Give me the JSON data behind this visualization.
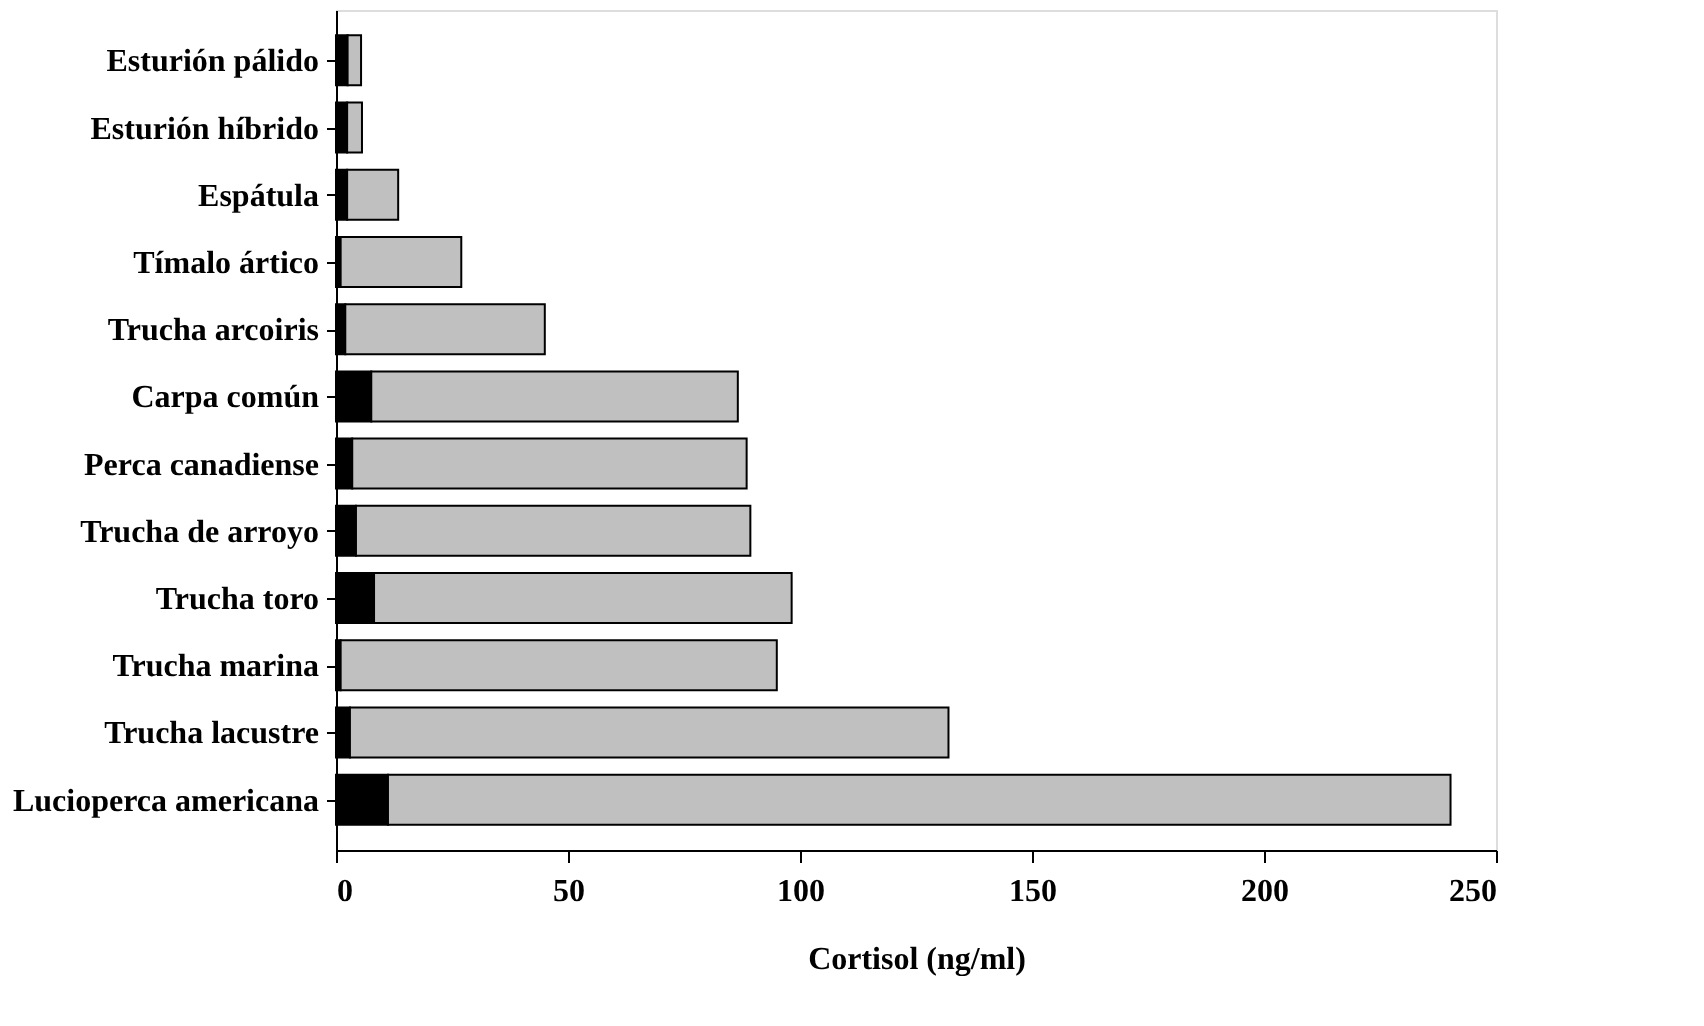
{
  "chart_data": {
    "type": "bar",
    "orientation": "horizontal",
    "stacked": true,
    "xlabel": "Cortisol (ng/ml)",
    "categories": [
      "Esturión pálido",
      "Esturión híbrido",
      "Espátula",
      "Tímalo ártico",
      "Trucha arcoiris",
      "Carpa común",
      "Perca canadiense",
      "Trucha de arroyo",
      "Trucha toro",
      "Trucha marina",
      "Trucha lacustre",
      "Lucioperca americana"
    ],
    "series": [
      {
        "color": "#000000",
        "values": [
          2.5,
          2.4,
          2.4,
          1,
          2,
          7.6,
          3.5,
          4.3,
          8.2,
          1,
          3,
          11.2
        ]
      },
      {
        "color": "#c0c0c0",
        "values": [
          2.9,
          3.2,
          11,
          26,
          43,
          79,
          85,
          85,
          90,
          94,
          129,
          229
        ]
      }
    ],
    "xlim": [
      0,
      250
    ],
    "xticks": [
      0,
      50,
      100,
      150,
      200,
      250
    ],
    "grid": false,
    "legend": false
  }
}
